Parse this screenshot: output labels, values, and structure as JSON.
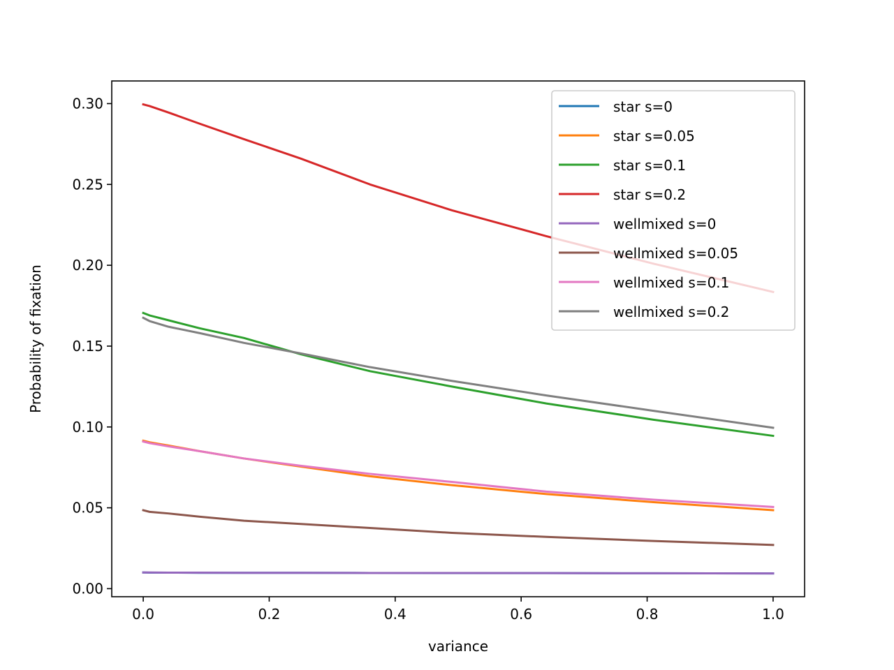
{
  "chart_data": {
    "type": "line",
    "title": "",
    "xlabel": "variance",
    "ylabel": "Probability of fixation",
    "xlim": [
      -0.05,
      1.05
    ],
    "ylim": [
      -0.005,
      0.314
    ],
    "xticks": [
      0.0,
      0.2,
      0.4,
      0.6,
      0.8,
      1.0
    ],
    "xtick_labels": [
      "0.0",
      "0.2",
      "0.4",
      "0.6",
      "0.8",
      "1.0"
    ],
    "yticks": [
      0.0,
      0.05,
      0.1,
      0.15,
      0.2,
      0.25,
      0.3
    ],
    "ytick_labels": [
      "0.00",
      "0.05",
      "0.10",
      "0.15",
      "0.20",
      "0.25",
      "0.30"
    ],
    "grid": false,
    "legend_position": "top-right",
    "series": [
      {
        "name": "star s=0",
        "color": "#1f77b4",
        "x": [
          0,
          0.01,
          0.04,
          0.09,
          0.16,
          0.25,
          0.36,
          0.49,
          0.64,
          0.81,
          1.0
        ],
        "y": [
          0.01,
          0.0099,
          0.0099,
          0.0098,
          0.0098,
          0.0098,
          0.0097,
          0.0096,
          0.0096,
          0.0095,
          0.0094
        ]
      },
      {
        "name": "star s=0.05",
        "color": "#ff7f0e",
        "x": [
          0,
          0.01,
          0.04,
          0.09,
          0.16,
          0.25,
          0.36,
          0.49,
          0.64,
          0.81,
          1.0
        ],
        "y": [
          0.0915,
          0.0905,
          0.0885,
          0.085,
          0.0805,
          0.0755,
          0.0695,
          0.064,
          0.0585,
          0.0535,
          0.0485
        ]
      },
      {
        "name": "star s=0.1",
        "color": "#2ca02c",
        "x": [
          0,
          0.01,
          0.04,
          0.09,
          0.16,
          0.25,
          0.36,
          0.49,
          0.64,
          0.81,
          1.0
        ],
        "y": [
          0.1705,
          0.169,
          0.166,
          0.161,
          0.155,
          0.145,
          0.1345,
          0.125,
          0.1145,
          0.1045,
          0.0945
        ]
      },
      {
        "name": "star s=0.2",
        "color": "#d62728",
        "x": [
          0,
          0.01,
          0.04,
          0.09,
          0.16,
          0.25,
          0.36,
          0.49,
          0.64,
          0.81,
          1.0
        ],
        "y": [
          0.2995,
          0.2985,
          0.2945,
          0.2875,
          0.278,
          0.266,
          0.25,
          0.234,
          0.218,
          0.201,
          0.1835
        ]
      },
      {
        "name": "wellmixed s=0",
        "color": "#9467bd",
        "x": [
          0,
          0.01,
          0.04,
          0.09,
          0.16,
          0.25,
          0.36,
          0.49,
          0.64,
          0.81,
          1.0
        ],
        "y": [
          0.01,
          0.01,
          0.0099,
          0.0099,
          0.0098,
          0.0098,
          0.0097,
          0.0097,
          0.0096,
          0.0095,
          0.0094
        ]
      },
      {
        "name": "wellmixed s=0.05",
        "color": "#8c564b",
        "x": [
          0,
          0.01,
          0.04,
          0.09,
          0.16,
          0.25,
          0.36,
          0.49,
          0.64,
          0.81,
          1.0
        ],
        "y": [
          0.0485,
          0.0475,
          0.0465,
          0.0445,
          0.042,
          0.04,
          0.0375,
          0.0345,
          0.032,
          0.0295,
          0.027
        ]
      },
      {
        "name": "wellmixed s=0.1",
        "color": "#e377c2",
        "x": [
          0,
          0.01,
          0.04,
          0.09,
          0.16,
          0.25,
          0.36,
          0.49,
          0.64,
          0.81,
          1.0
        ],
        "y": [
          0.091,
          0.09,
          0.088,
          0.085,
          0.0805,
          0.076,
          0.071,
          0.066,
          0.06,
          0.055,
          0.0505
        ]
      },
      {
        "name": "wellmixed s=0.2",
        "color": "#7f7f7f",
        "x": [
          0,
          0.01,
          0.04,
          0.09,
          0.16,
          0.25,
          0.36,
          0.49,
          0.64,
          0.81,
          1.0
        ],
        "y": [
          0.1675,
          0.1655,
          0.162,
          0.158,
          0.152,
          0.1455,
          0.137,
          0.1285,
          0.1195,
          0.11,
          0.0995
        ]
      }
    ]
  }
}
